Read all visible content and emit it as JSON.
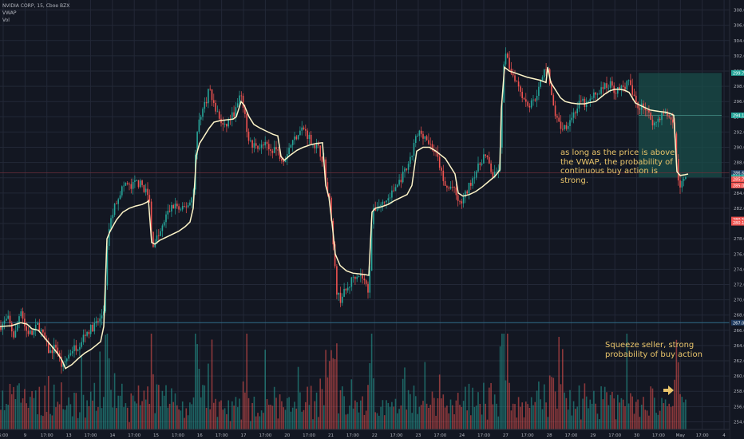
{
  "header": {
    "symbol_line": "NVIDIA CORP, 15, Cboe BZX",
    "indicator": "VWAP",
    "volume": "Vol"
  },
  "annotations": {
    "vwap_note": "as long as the price is above\nthe VWAP, the probability of\ncontinuous buy action is\nstrong.",
    "squeeze_note": "Squeeze seller, strong\nprobability of buy action"
  },
  "colors": {
    "background": "#131722",
    "grid": "#232837",
    "up": "#26a69a",
    "down": "#ef5350",
    "vwap": "#fff6c9",
    "annotation": "#e9c46a",
    "target_zone": "#1a4d4a",
    "stop_zone": "#7a1f24",
    "support_line": "#2f6f89"
  },
  "chart_data": {
    "type": "candlestick",
    "symbol": "NVIDIA CORP",
    "interval": "15",
    "exchange": "Cboe BZX",
    "x_ticks": [
      "6:00",
      "9",
      "17:00",
      "13",
      "17:00",
      "14",
      "17:00",
      "15",
      "17:00",
      "16",
      "17:00",
      "17",
      "17:00",
      "20",
      "17:00",
      "21",
      "17:00",
      "22",
      "17:00",
      "23",
      "17:00",
      "24",
      "17:00",
      "27",
      "17:00",
      "28",
      "17:00",
      "29",
      "17:00",
      "30",
      "17:00",
      "May",
      "17:00",
      "4"
    ],
    "y_axis": {
      "ticks": [
        254,
        256,
        258,
        260,
        262,
        264,
        266,
        268,
        270,
        272,
        274,
        276,
        278,
        280,
        282,
        284,
        286,
        288,
        290,
        292,
        294,
        296,
        298,
        300,
        302,
        304,
        306,
        308
      ],
      "ylim": [
        253,
        309
      ]
    },
    "price_labels": [
      {
        "text": "299.75",
        "value": 299.75,
        "color": "#26a69a"
      },
      {
        "text": "294.19",
        "value": 294.19,
        "color": "#26a69a"
      },
      {
        "text": "286.64",
        "value": 286.64,
        "color": "#1e3a5f"
      },
      {
        "text": "286.05",
        "value": 286.05,
        "color": "#26a69a"
      },
      {
        "text": "285.79",
        "value": 285.79,
        "color": "#ef5350"
      },
      {
        "text": "285.00",
        "value": 285.0,
        "color": "#ef5350"
      },
      {
        "text": "280.52",
        "value": 280.52,
        "color": "#ef5350"
      },
      {
        "text": "280.10",
        "value": 280.1,
        "color": "#ef5350"
      },
      {
        "text": "267.00",
        "value": 267.0,
        "color": "#1e3a5f"
      }
    ],
    "path_points": [
      [
        0,
        266.5
      ],
      [
        10,
        267.5
      ],
      [
        18,
        265
      ],
      [
        26,
        269
      ],
      [
        32,
        266
      ],
      [
        40,
        265.5
      ],
      [
        48,
        266.8
      ],
      [
        55,
        265
      ],
      [
        62,
        263
      ],
      [
        70,
        264
      ],
      [
        78,
        261
      ],
      [
        82,
        262
      ],
      [
        90,
        263.5
      ],
      [
        98,
        264
      ],
      [
        106,
        265.5
      ],
      [
        114,
        266.2
      ],
      [
        120,
        266.8
      ],
      [
        126,
        267.5
      ],
      [
        131,
        269
      ],
      [
        134,
        276
      ],
      [
        136,
        279
      ],
      [
        140,
        281
      ],
      [
        146,
        283
      ],
      [
        152,
        284.5
      ],
      [
        158,
        285.3
      ],
      [
        164,
        284.6
      ],
      [
        170,
        285.5
      ],
      [
        178,
        285
      ],
      [
        184,
        284
      ],
      [
        188,
        282.5
      ],
      [
        190,
        277.8
      ],
      [
        192,
        277.3
      ],
      [
        196,
        278
      ],
      [
        202,
        279
      ],
      [
        208,
        281
      ],
      [
        214,
        282
      ],
      [
        220,
        282.5
      ],
      [
        226,
        281.5
      ],
      [
        232,
        282.2
      ],
      [
        238,
        282.8
      ],
      [
        242,
        284
      ],
      [
        246,
        291
      ],
      [
        250,
        294
      ],
      [
        254,
        295
      ],
      [
        258,
        296
      ],
      [
        262,
        298
      ],
      [
        266,
        296
      ],
      [
        270,
        295
      ],
      [
        274,
        294
      ],
      [
        278,
        293
      ],
      [
        282,
        292.5
      ],
      [
        286,
        293.5
      ],
      [
        290,
        294
      ],
      [
        296,
        295
      ],
      [
        300,
        296.5
      ],
      [
        304,
        296
      ],
      [
        308,
        293
      ],
      [
        312,
        291
      ],
      [
        316,
        290
      ],
      [
        320,
        290.5
      ],
      [
        326,
        290
      ],
      [
        332,
        290.3
      ],
      [
        338,
        289.5
      ],
      [
        344,
        290
      ],
      [
        350,
        289
      ],
      [
        356,
        288.5
      ],
      [
        362,
        290
      ],
      [
        368,
        291
      ],
      [
        374,
        292
      ],
      [
        380,
        292.5
      ],
      [
        386,
        291.5
      ],
      [
        392,
        290.5
      ],
      [
        398,
        290
      ],
      [
        402,
        289
      ],
      [
        406,
        288
      ],
      [
        410,
        284
      ],
      [
        414,
        282.5
      ],
      [
        418,
        276
      ],
      [
        422,
        271
      ],
      [
        426,
        270
      ],
      [
        430,
        270.8
      ],
      [
        436,
        271.5
      ],
      [
        442,
        273
      ],
      [
        448,
        273.5
      ],
      [
        454,
        273
      ],
      [
        458,
        272
      ],
      [
        462,
        271
      ],
      [
        466,
        281
      ],
      [
        470,
        282
      ],
      [
        476,
        282.5
      ],
      [
        482,
        282.8
      ],
      [
        488,
        283.5
      ],
      [
        494,
        284.5
      ],
      [
        500,
        285.5
      ],
      [
        506,
        286.5
      ],
      [
        512,
        287.5
      ],
      [
        516,
        289
      ],
      [
        520,
        291
      ],
      [
        526,
        292
      ],
      [
        532,
        291.5
      ],
      [
        538,
        290.5
      ],
      [
        544,
        289.5
      ],
      [
        550,
        288
      ],
      [
        556,
        285
      ],
      [
        562,
        284.5
      ],
      [
        566,
        285
      ],
      [
        570,
        284
      ],
      [
        576,
        282.5
      ],
      [
        582,
        283.5
      ],
      [
        588,
        285
      ],
      [
        594,
        286.5
      ],
      [
        600,
        287.5
      ],
      [
        606,
        289
      ],
      [
        612,
        288
      ],
      [
        618,
        286
      ],
      [
        624,
        287
      ],
      [
        628,
        291
      ],
      [
        630,
        301
      ],
      [
        634,
        302
      ],
      [
        640,
        300
      ],
      [
        646,
        299
      ],
      [
        652,
        297.5
      ],
      [
        658,
        296
      ],
      [
        664,
        295.5
      ],
      [
        670,
        296.5
      ],
      [
        676,
        298
      ],
      [
        682,
        300
      ],
      [
        686,
        301
      ],
      [
        690,
        297
      ],
      [
        694,
        295
      ],
      [
        698,
        293.5
      ],
      [
        704,
        292.5
      ],
      [
        710,
        293
      ],
      [
        716,
        294
      ],
      [
        722,
        295
      ],
      [
        728,
        296
      ],
      [
        734,
        295.5
      ],
      [
        740,
        296.2
      ],
      [
        746,
        297
      ],
      [
        752,
        297.5
      ],
      [
        758,
        298
      ],
      [
        764,
        298.3
      ],
      [
        770,
        297.5
      ],
      [
        776,
        297.5
      ],
      [
        782,
        298
      ],
      [
        788,
        298.5
      ],
      [
        792,
        297
      ],
      [
        796,
        296
      ],
      [
        800,
        295
      ],
      [
        804,
        296
      ],
      [
        808,
        295
      ],
      [
        814,
        294
      ],
      [
        820,
        293
      ],
      [
        826,
        294
      ],
      [
        832,
        294.5
      ],
      [
        838,
        294
      ],
      [
        842,
        293.5
      ],
      [
        846,
        292
      ],
      [
        848,
        286.5
      ],
      [
        852,
        285
      ],
      [
        856,
        285.5
      ],
      [
        860,
        286
      ]
    ],
    "vwap_points": [
      [
        0,
        266.5
      ],
      [
        14,
        266.6
      ],
      [
        26,
        267
      ],
      [
        34,
        266.8
      ],
      [
        40,
        266.2
      ],
      [
        48,
        266
      ],
      [
        56,
        265
      ],
      [
        64,
        264
      ],
      [
        72,
        263
      ],
      [
        78,
        262
      ],
      [
        82,
        261
      ],
      [
        90,
        261.5
      ],
      [
        98,
        262.3
      ],
      [
        106,
        263
      ],
      [
        114,
        263.5
      ],
      [
        120,
        264
      ],
      [
        126,
        264.5
      ],
      [
        130,
        266.5
      ],
      [
        134,
        278
      ],
      [
        138,
        279
      ],
      [
        146,
        280.5
      ],
      [
        154,
        281.5
      ],
      [
        162,
        282
      ],
      [
        170,
        282.3
      ],
      [
        178,
        282.5
      ],
      [
        184,
        282.8
      ],
      [
        186,
        283
      ],
      [
        190,
        277.5
      ],
      [
        194,
        277.3
      ],
      [
        200,
        277.8
      ],
      [
        208,
        278.2
      ],
      [
        216,
        278.6
      ],
      [
        224,
        279
      ],
      [
        232,
        279.6
      ],
      [
        238,
        280.2
      ],
      [
        242,
        282
      ],
      [
        246,
        289
      ],
      [
        250,
        290.5
      ],
      [
        256,
        291.5
      ],
      [
        262,
        292.5
      ],
      [
        268,
        293.3
      ],
      [
        276,
        293.5
      ],
      [
        284,
        293.6
      ],
      [
        292,
        293.7
      ],
      [
        296,
        294
      ],
      [
        302,
        296
      ],
      [
        306,
        295.5
      ],
      [
        312,
        294
      ],
      [
        318,
        293
      ],
      [
        326,
        292.5
      ],
      [
        334,
        292.1
      ],
      [
        342,
        291.7
      ],
      [
        348,
        291.5
      ],
      [
        352,
        288.8
      ],
      [
        356,
        288.3
      ],
      [
        364,
        289
      ],
      [
        372,
        289.6
      ],
      [
        380,
        290
      ],
      [
        388,
        290.3
      ],
      [
        396,
        290.5
      ],
      [
        404,
        290.6
      ],
      [
        408,
        285
      ],
      [
        412,
        283.5
      ],
      [
        416,
        280
      ],
      [
        420,
        276
      ],
      [
        426,
        274.5
      ],
      [
        434,
        273.8
      ],
      [
        442,
        273.5
      ],
      [
        450,
        273.4
      ],
      [
        458,
        273.3
      ],
      [
        462,
        273.2
      ],
      [
        466,
        281.5
      ],
      [
        470,
        282
      ],
      [
        478,
        282.2
      ],
      [
        486,
        282.5
      ],
      [
        494,
        283
      ],
      [
        502,
        283.4
      ],
      [
        510,
        283.8
      ],
      [
        516,
        285
      ],
      [
        522,
        289.5
      ],
      [
        530,
        290
      ],
      [
        538,
        290
      ],
      [
        546,
        289.5
      ],
      [
        552,
        289
      ],
      [
        558,
        288.5
      ],
      [
        564,
        287.5
      ],
      [
        570,
        286.5
      ],
      [
        574,
        284
      ],
      [
        580,
        283.6
      ],
      [
        588,
        283.8
      ],
      [
        596,
        284.2
      ],
      [
        604,
        284.8
      ],
      [
        612,
        285.5
      ],
      [
        620,
        286.2
      ],
      [
        626,
        287
      ],
      [
        628,
        295
      ],
      [
        632,
        300.5
      ],
      [
        638,
        300
      ],
      [
        644,
        299.8
      ],
      [
        652,
        299.5
      ],
      [
        660,
        299.2
      ],
      [
        668,
        299
      ],
      [
        676,
        298.8
      ],
      [
        684,
        298.5
      ],
      [
        686,
        300.5
      ],
      [
        690,
        298.5
      ],
      [
        696,
        297.5
      ],
      [
        702,
        296.5
      ],
      [
        708,
        296
      ],
      [
        716,
        295.8
      ],
      [
        724,
        295.7
      ],
      [
        732,
        295.7
      ],
      [
        740,
        295.9
      ],
      [
        746,
        296
      ],
      [
        752,
        296.5
      ],
      [
        758,
        297
      ],
      [
        764,
        297.4
      ],
      [
        770,
        297.6
      ],
      [
        776,
        297.6
      ],
      [
        782,
        297.5
      ],
      [
        788,
        297.2
      ],
      [
        792,
        296.5
      ],
      [
        796,
        295.8
      ],
      [
        802,
        295.5
      ],
      [
        808,
        295.2
      ],
      [
        814,
        294.9
      ],
      [
        820,
        294.8
      ],
      [
        826,
        294.7
      ],
      [
        834,
        294.6
      ],
      [
        840,
        294.4
      ],
      [
        844,
        294.2
      ],
      [
        848,
        286.8
      ],
      [
        852,
        286.3
      ],
      [
        858,
        286.4
      ],
      [
        862,
        286.5
      ]
    ],
    "trade_zones": {
      "target": {
        "from": 286.05,
        "to": 299.75
      },
      "stop": {
        "from": 280.1,
        "to": 286.05
      },
      "mid_line": 294.19
    },
    "support_level": 267.0,
    "resistance_line": 286.64,
    "volume": {
      "present": true,
      "scale_max": 10
    }
  }
}
